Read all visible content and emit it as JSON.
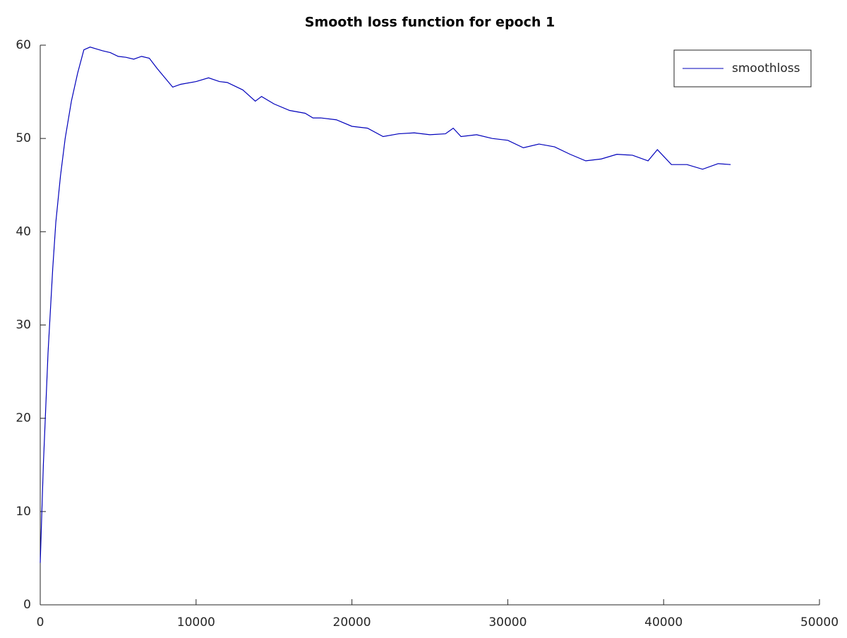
{
  "chart_data": {
    "type": "line",
    "title": "Smooth loss function for epoch 1",
    "x": [
      0,
      200,
      500,
      800,
      1000,
      1300,
      1600,
      2000,
      2400,
      2800,
      3200,
      3600,
      4000,
      4500,
      5000,
      5500,
      6000,
      6500,
      7000,
      7500,
      8000,
      8500,
      9000,
      10000,
      10800,
      11500,
      12000,
      13000,
      13800,
      14200,
      15000,
      16000,
      17000,
      17500,
      18000,
      19000,
      20000,
      21000,
      22000,
      23000,
      24000,
      25000,
      26000,
      26500,
      27000,
      28000,
      29000,
      30000,
      31000,
      32000,
      33000,
      34000,
      35000,
      36000,
      37000,
      38000,
      39000,
      39600,
      40500,
      41500,
      42500,
      43500,
      44300
    ],
    "series": [
      {
        "name": "smoothloss",
        "color": "#0000bb",
        "values": [
          4.5,
          15,
          27,
          36,
          41,
          46,
          50,
          54,
          57,
          59.5,
          59.8,
          59.6,
          59.4,
          59.2,
          58.8,
          58.7,
          58.5,
          58.8,
          58.6,
          57.5,
          56.5,
          55.5,
          55.8,
          56.1,
          56.5,
          56.1,
          56.0,
          55.2,
          54.0,
          54.5,
          53.7,
          53.0,
          52.7,
          52.2,
          52.2,
          52.0,
          51.3,
          51.1,
          50.2,
          50.5,
          50.6,
          50.4,
          50.5,
          51.1,
          50.2,
          50.4,
          50.0,
          49.8,
          49.0,
          49.4,
          49.1,
          48.3,
          47.6,
          47.8,
          48.3,
          48.2,
          47.6,
          48.8,
          47.2,
          47.2,
          46.7,
          47.3,
          47.2
        ]
      }
    ],
    "xlim": [
      0,
      50000
    ],
    "xticks": [
      0,
      10000,
      20000,
      30000,
      40000,
      50000
    ],
    "ylim": [
      0,
      60
    ],
    "yticks": [
      0,
      10,
      20,
      30,
      40,
      50,
      60
    ],
    "grid": false,
    "legend": "upper right"
  }
}
